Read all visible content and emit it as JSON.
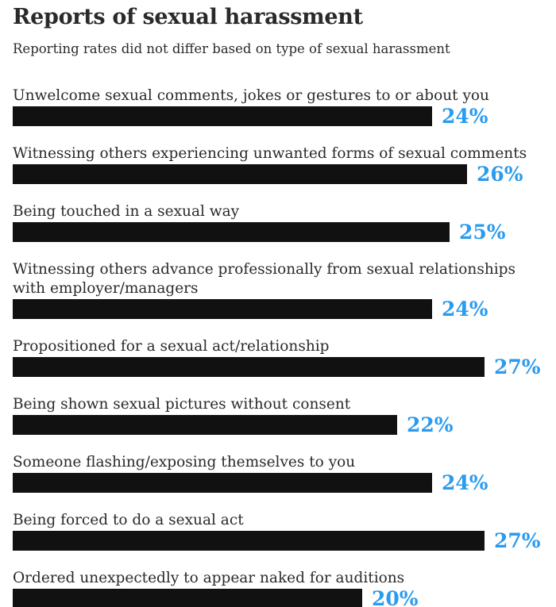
{
  "chart_data": {
    "type": "bar",
    "orientation": "horizontal",
    "title": "Reports of sexual harassment",
    "subtitle": "Reporting rates did not differ based on type of sexual harassment",
    "categories": [
      [
        "Unwelcome sexual comments, jokes or gestures to or about you"
      ],
      [
        "Witnessing others experiencing unwanted forms of sexual comments"
      ],
      [
        "Being touched in a sexual way"
      ],
      [
        "Witnessing others advance professionally from sexual relationships",
        "with employer/managers"
      ],
      [
        "Propositioned for a sexual act/relationship"
      ],
      [
        "Being shown sexual pictures without consent"
      ],
      [
        "Someone flashing/exposing themselves to you"
      ],
      [
        "Being forced to do a sexual act"
      ],
      [
        "Ordered unexpectedly to appear naked for auditions"
      ]
    ],
    "values": [
      24,
      26,
      25,
      24,
      27,
      22,
      24,
      27,
      20
    ],
    "value_labels": [
      "24%",
      "26%",
      "25%",
      "24%",
      "27%",
      "22%",
      "24%",
      "27%",
      "20%"
    ],
    "unit": "%",
    "xlim": [
      0,
      27
    ],
    "grid": false,
    "legend": "none",
    "colors": {
      "bar": "#111111",
      "value_label": "#2a9bee",
      "text": "#2a2a2a",
      "background": "#ffffff"
    }
  }
}
